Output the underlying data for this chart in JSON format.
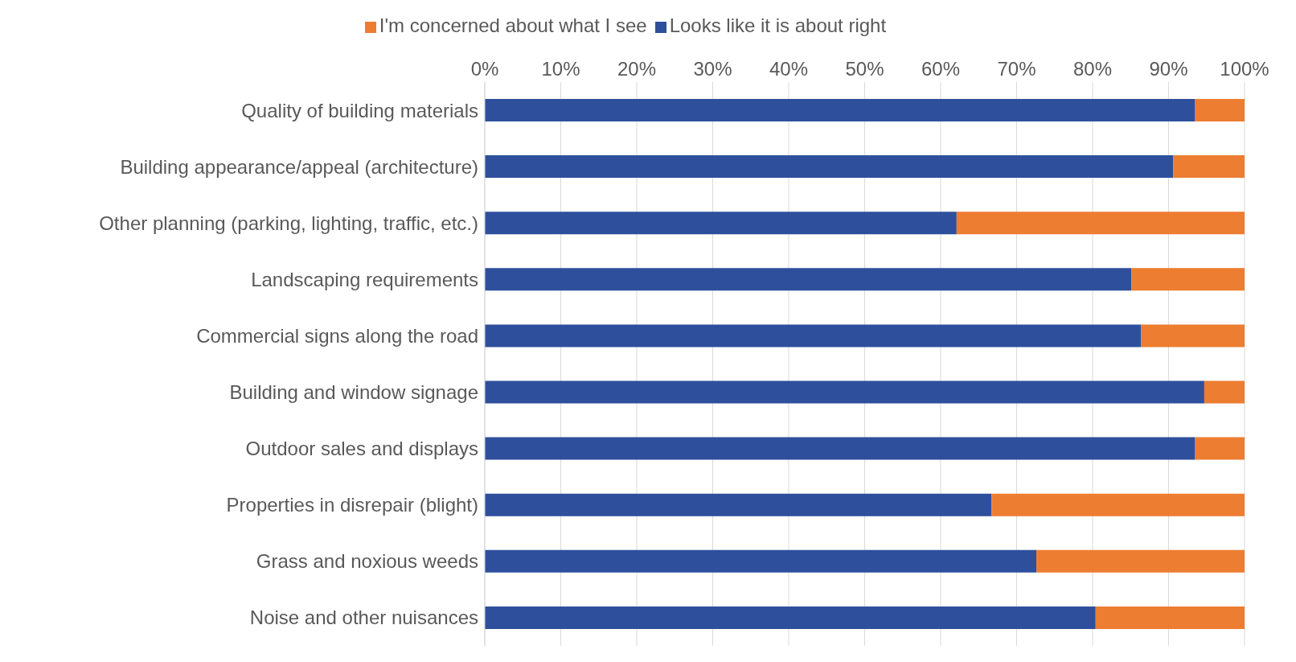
{
  "chart_data": {
    "type": "bar",
    "orientation": "horizontal",
    "stacked": true,
    "categories": [
      "Quality of building materials",
      "Building appearance/appeal (architecture)",
      "Other planning (parking, lighting, traffic, etc.)",
      "Landscaping requirements",
      "Commercial signs along the road",
      "Building and window signage",
      "Outdoor sales and displays",
      "Properties in disrepair (blight)",
      "Grass and noxious weeds",
      "Noise and other nuisances"
    ],
    "series": [
      {
        "name": "Looks like it is about right",
        "color": "#2e4f9c",
        "values": [
          93.5,
          90.6,
          62.1,
          85.1,
          86.4,
          94.7,
          93.5,
          66.7,
          72.6,
          80.4
        ]
      },
      {
        "name": "I'm concerned about what I see",
        "color": "#ed7d31",
        "values": [
          6.5,
          9.4,
          37.9,
          14.9,
          13.6,
          5.3,
          6.5,
          33.3,
          27.4,
          19.6
        ]
      }
    ],
    "xlim": [
      0,
      100
    ],
    "xticks": [
      {
        "value": 0,
        "label": "0%"
      },
      {
        "value": 10,
        "label": "10%"
      },
      {
        "value": 20,
        "label": "20%"
      },
      {
        "value": 30,
        "label": "30%"
      },
      {
        "value": 40,
        "label": "40%"
      },
      {
        "value": 50,
        "label": "50%"
      },
      {
        "value": 60,
        "label": "60%"
      },
      {
        "value": 70,
        "label": "70%"
      },
      {
        "value": 80,
        "label": "80%"
      },
      {
        "value": 90,
        "label": "90%"
      },
      {
        "value": 100,
        "label": "100%"
      }
    ],
    "grid": "x",
    "legend": "top"
  }
}
